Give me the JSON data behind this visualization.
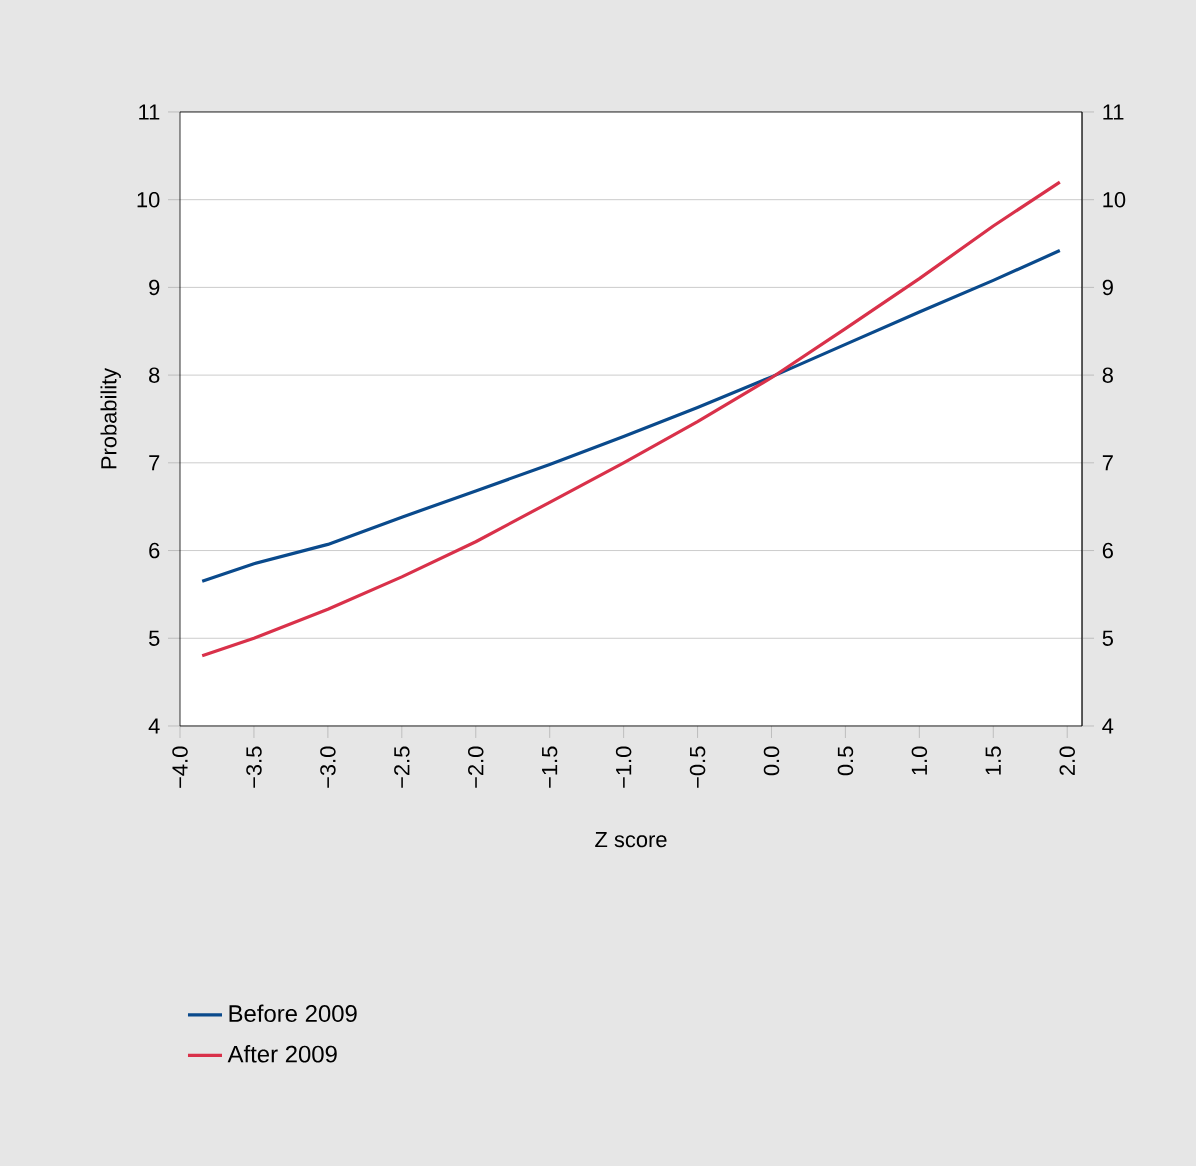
{
  "chart_data": {
    "type": "line",
    "xlabel": "Z score",
    "ylabel": "Probability",
    "xlim": [
      -4.0,
      2.1
    ],
    "xticks": [
      {
        "value": -4.0,
        "label": "−4.0"
      },
      {
        "value": -3.5,
        "label": "−3.5"
      },
      {
        "value": -3.0,
        "label": "−3.0"
      },
      {
        "value": -2.5,
        "label": "−2.5"
      },
      {
        "value": -2.0,
        "label": "−2.0"
      },
      {
        "value": -1.5,
        "label": "−1.5"
      },
      {
        "value": -1.0,
        "label": "−1.0"
      },
      {
        "value": -0.5,
        "label": "−0.5"
      },
      {
        "value": 0.0,
        "label": "0.0"
      },
      {
        "value": 0.5,
        "label": "0.5"
      },
      {
        "value": 1.0,
        "label": "1.0"
      },
      {
        "value": 1.5,
        "label": "1.5"
      },
      {
        "value": 2.0,
        "label": "2.0"
      }
    ],
    "ylim": [
      4,
      11
    ],
    "yticks": [
      4,
      5,
      6,
      7,
      8,
      9,
      10,
      11
    ],
    "y2lim": [
      4,
      11
    ],
    "y2ticks": [
      4,
      5,
      6,
      7,
      8,
      9,
      10,
      11
    ],
    "grid": "y",
    "legend": "bottom left",
    "marker": "none",
    "line_style": "solid",
    "x": [
      -3.85,
      -3.5,
      -3.0,
      -2.5,
      -2.0,
      -1.5,
      -1.0,
      -0.5,
      0.0,
      0.5,
      1.0,
      1.5,
      1.95
    ],
    "series": [
      {
        "name": "Before 2009",
        "color": "#0a4a8c",
        "values": [
          5.65,
          5.85,
          6.07,
          6.38,
          6.68,
          6.98,
          7.3,
          7.63,
          7.98,
          8.35,
          8.72,
          9.08,
          9.42
        ]
      },
      {
        "name": "After 2009",
        "color": "#d9314a",
        "values": [
          4.8,
          5.0,
          5.33,
          5.7,
          6.1,
          6.55,
          7.0,
          7.47,
          7.97,
          8.53,
          9.1,
          9.7,
          10.2
        ]
      }
    ]
  }
}
